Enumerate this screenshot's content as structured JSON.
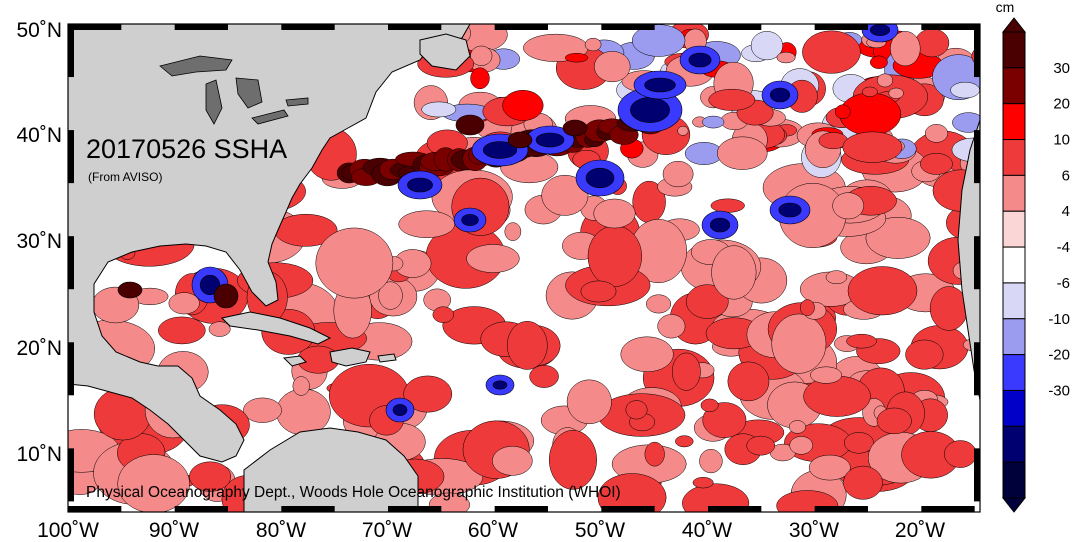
{
  "map": {
    "title": "20170526 SSHA",
    "source": "(From AVISO)",
    "credit": "Physical Oceanography Dept., Woods Hole Oceanographic Institution (WHOI)",
    "lon_labels": [
      "100˚W",
      "90˚W",
      "80˚W",
      "70˚W",
      "60˚W",
      "50˚W",
      "40˚W",
      "30˚W",
      "20˚W"
    ],
    "lat_labels": [
      "50˚N",
      "40˚N",
      "30˚N",
      "20˚N",
      "10˚N"
    ],
    "land_color": "#cfcfcf",
    "lake_color": "#6e6e6e"
  },
  "colorbar": {
    "unit": "cm",
    "levels": [
      "30",
      "20",
      "10",
      "6",
      "4",
      "-4",
      "-6",
      "-10",
      "-20",
      "-30"
    ],
    "colors": [
      "#4a0000",
      "#7a0000",
      "#ff0000",
      "#ee3a3a",
      "#f58a8a",
      "#fbd6d6",
      "#ffffff",
      "#d8d8f6",
      "#9b9bf0",
      "#3a3aff",
      "#0000c8",
      "#000070",
      "#00003a"
    ]
  }
}
